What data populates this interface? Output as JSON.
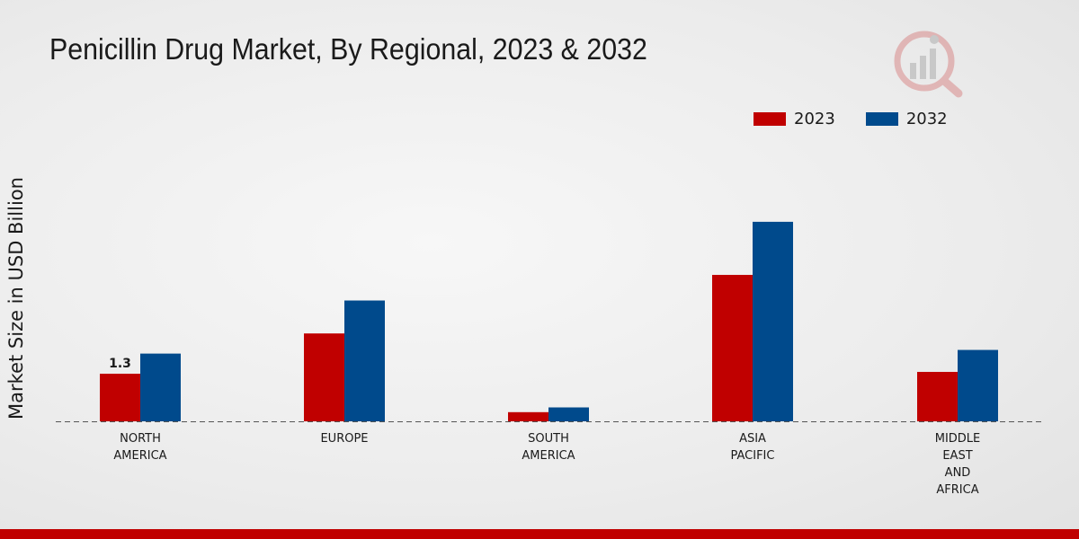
{
  "chart_data": {
    "type": "bar",
    "title": "Penicillin Drug Market, By Regional, 2023 & 2032",
    "xlabel": "",
    "ylabel": "Market Size in USD Billion",
    "categories": [
      [
        "NORTH",
        "AMERICA"
      ],
      [
        "EUROPE"
      ],
      [
        "SOUTH",
        "AMERICA"
      ],
      [
        "ASIA",
        "PACIFIC"
      ],
      [
        "MIDDLE",
        "EAST",
        "AND",
        "AFRICA"
      ]
    ],
    "series": [
      {
        "name": "2023",
        "color": "#c00000",
        "values": [
          1.3,
          2.4,
          0.25,
          4.0,
          1.35
        ]
      },
      {
        "name": "2032",
        "color": "#004a8c",
        "values": [
          1.85,
          3.3,
          0.38,
          5.45,
          1.95
        ]
      }
    ],
    "data_labels": [
      {
        "series": 0,
        "index": 0,
        "text": "1.3"
      }
    ],
    "ylim": [
      0,
      9.3
    ],
    "legend_position": "top-right",
    "grid": false
  }
}
